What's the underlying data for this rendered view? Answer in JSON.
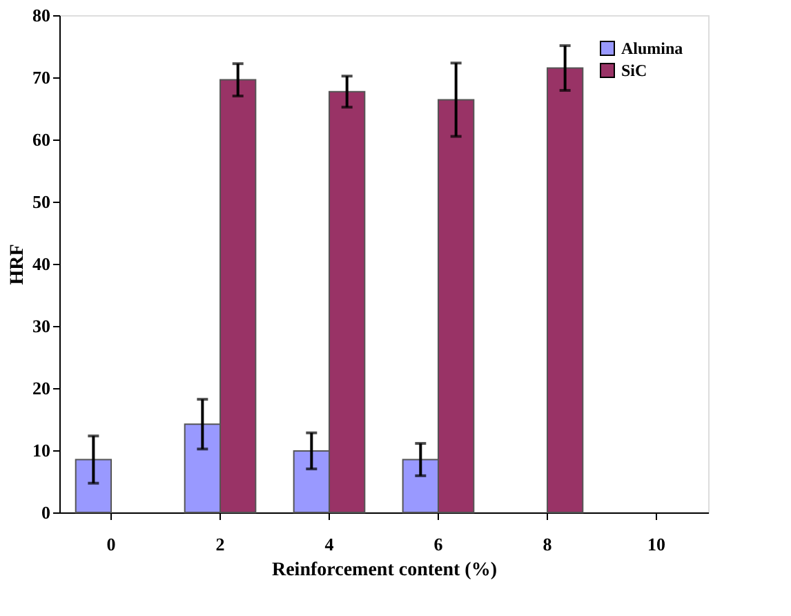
{
  "chart_data": {
    "type": "bar",
    "xlabel": "Reinforcement content (%)",
    "ylabel": "HRF",
    "categories": [
      "0",
      "2",
      "4",
      "6",
      "8",
      "10"
    ],
    "series": [
      {
        "name": "Alumina",
        "color": "#9999ff",
        "values": [
          8.5,
          14.2,
          9.9,
          8.5,
          null,
          null
        ],
        "errors": [
          3.8,
          4.0,
          2.9,
          2.6,
          null,
          null
        ]
      },
      {
        "name": "SiC",
        "color": "#993366",
        "values": [
          null,
          69.6,
          67.7,
          66.4,
          71.5,
          null
        ],
        "errors": [
          null,
          2.6,
          2.5,
          5.9,
          3.6,
          null
        ]
      }
    ],
    "ylim": [
      0,
      80
    ],
    "yticks": [
      0,
      10,
      20,
      30,
      40,
      50,
      60,
      70,
      80
    ],
    "grid": false,
    "legend": "top right"
  }
}
